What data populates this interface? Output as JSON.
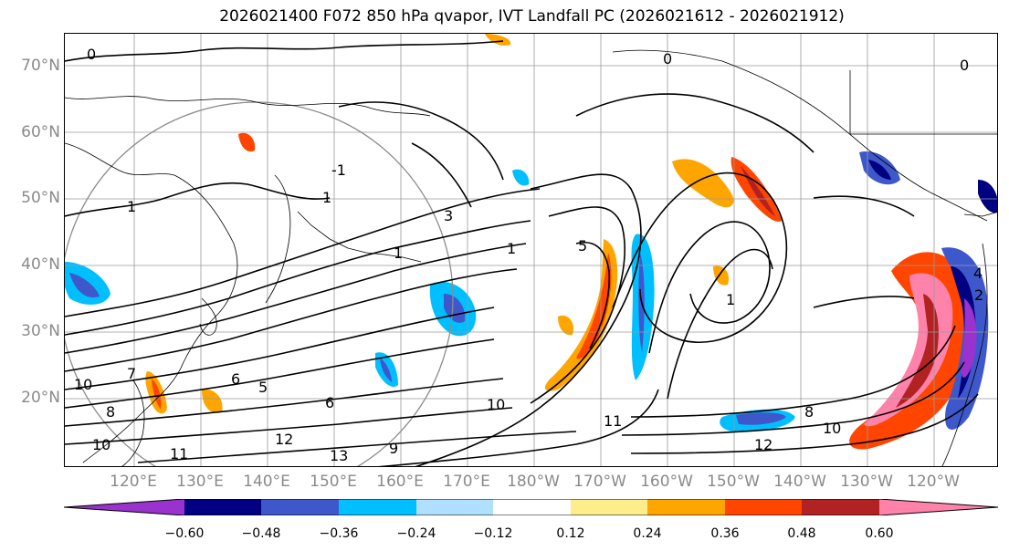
{
  "title": "2026021400 F072 850 hPa qvapor, IVT Landfall PC (2026021612 - 2026021912)",
  "map": {
    "lat_labels": [
      "70°N",
      "60°N",
      "50°N",
      "40°N",
      "30°N",
      "20°N"
    ],
    "lon_labels": [
      "120°E",
      "130°E",
      "140°E",
      "150°E",
      "160°E",
      "170°E",
      "180°W",
      "170°W",
      "160°W",
      "150°W",
      "140°W",
      "130°W",
      "120°W"
    ],
    "contour_labels": [
      "0",
      "0",
      "0",
      "1",
      "1",
      "1",
      "1",
      "1",
      "3",
      "5",
      "5",
      "6",
      "6",
      "7",
      "8",
      "8",
      "9",
      "10",
      "10",
      "10",
      "10",
      "11",
      "11",
      "12",
      "12",
      "13",
      "4",
      "-1",
      "2"
    ]
  },
  "colorbar": {
    "tick_labels": [
      "−0.60",
      "−0.48",
      "−0.36",
      "−0.24",
      "−0.12",
      "0.12",
      "0.24",
      "0.36",
      "0.48",
      "0.60"
    ],
    "colors": [
      "#9a32cd",
      "#000080",
      "#3e58cc",
      "#00bfff",
      "#b0e0ff",
      "#ffffff",
      "#ffec8b",
      "#ffa500",
      "#ff4500",
      "#b22222",
      "#ff82ab"
    ]
  }
}
